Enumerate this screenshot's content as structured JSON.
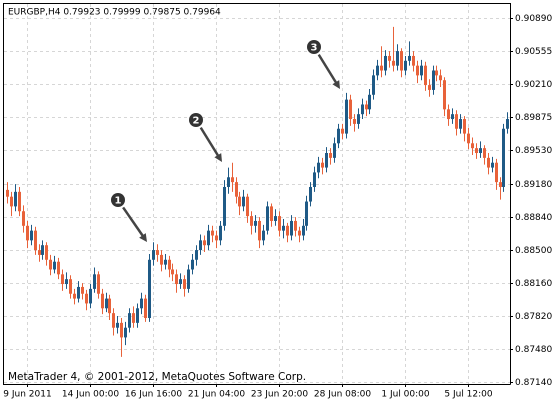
{
  "chart_data": {
    "type": "candlestick",
    "title": "EURGBP,H4  0.79923 0.79999 0.79875 0.79964",
    "footer": "MetaTrader 4, © 2001-2012, MetaQuotes Software Corp.",
    "annotations": [
      "1",
      "2",
      "3"
    ],
    "up_color": "#1f5a86",
    "down_color": "#e8623a",
    "grid": true,
    "ylim": [
      0.8712,
      0.91025
    ],
    "yticks": [
      {
        "value": 0.9089,
        "label": "0.90890"
      },
      {
        "value": 0.90555,
        "label": "0.90555"
      },
      {
        "value": 0.9021,
        "label": "0.90210"
      },
      {
        "value": 0.89875,
        "label": "0.89875"
      },
      {
        "value": 0.8953,
        "label": "0.89530"
      },
      {
        "value": 0.8918,
        "label": "0.89180"
      },
      {
        "value": 0.8884,
        "label": "0.88840"
      },
      {
        "value": 0.885,
        "label": "0.88500"
      },
      {
        "value": 0.8816,
        "label": "0.88160"
      },
      {
        "value": 0.8782,
        "label": "0.87820"
      },
      {
        "value": 0.8748,
        "label": "0.87480"
      },
      {
        "value": 0.8714,
        "label": "0.87140"
      }
    ],
    "categories": [
      null,
      null,
      null,
      null,
      null,
      "9 Jun 2011",
      null,
      null,
      null,
      null,
      null,
      null,
      null,
      null,
      null,
      null,
      null,
      null,
      null,
      null,
      null,
      "14 Jun 00:00",
      null,
      null,
      null,
      null,
      null,
      null,
      null,
      null,
      null,
      null,
      null,
      null,
      null,
      null,
      null,
      "16 Jun 16:00",
      null,
      null,
      null,
      null,
      null,
      null,
      null,
      null,
      null,
      null,
      null,
      null,
      null,
      null,
      null,
      "21 Jun 04:00",
      null,
      null,
      null,
      null,
      null,
      null,
      null,
      null,
      null,
      null,
      null,
      null,
      null,
      null,
      null,
      "23 Jun 20:00",
      null,
      null,
      null,
      null,
      null,
      null,
      null,
      null,
      null,
      null,
      null,
      null,
      null,
      null,
      null,
      "28 Jun 08:00",
      null,
      null,
      null,
      null,
      null,
      null,
      null,
      null,
      null,
      null,
      null,
      null,
      null,
      null,
      null,
      "1 Jul 00:00",
      null,
      null,
      null,
      null,
      null,
      null,
      null,
      null,
      null,
      null,
      null,
      null,
      null,
      null,
      null,
      "5 Jul 12:00",
      null,
      null,
      null,
      null,
      null,
      null,
      null,
      null,
      null,
      null
    ],
    "open": [
      0.8912,
      0.8905,
      0.8895,
      0.891,
      0.889,
      0.8875,
      0.886,
      0.887,
      0.885,
      0.8845,
      0.8855,
      0.884,
      0.883,
      0.8838,
      0.8825,
      0.8815,
      0.882,
      0.8805,
      0.88,
      0.8812,
      0.8805,
      0.8795,
      0.881,
      0.8825,
      0.8805,
      0.879,
      0.88,
      0.8785,
      0.877,
      0.8775,
      0.876,
      0.877,
      0.8785,
      0.8775,
      0.879,
      0.88,
      0.878,
      0.884,
      0.885,
      0.8845,
      0.8835,
      0.884,
      0.883,
      0.8825,
      0.8815,
      0.882,
      0.881,
      0.883,
      0.884,
      0.885,
      0.886,
      0.8855,
      0.887,
      0.8865,
      0.886,
      0.8875,
      0.8915,
      0.8925,
      0.892,
      0.8905,
      0.8895,
      0.8905,
      0.8885,
      0.8875,
      0.888,
      0.886,
      0.887,
      0.8895,
      0.888,
      0.8885,
      0.887,
      0.8875,
      0.8865,
      0.888,
      0.887,
      0.8865,
      0.8875,
      0.89,
      0.8915,
      0.893,
      0.894,
      0.8935,
      0.895,
      0.8945,
      0.896,
      0.8975,
      0.897,
      0.9005,
      0.8985,
      0.898,
      0.899,
      0.9,
      0.8995,
      0.901,
      0.903,
      0.904,
      0.9035,
      0.905,
      0.9045,
      0.904,
      0.9055,
      0.9035,
      0.9045,
      0.905,
      0.904,
      0.903,
      0.904,
      0.902,
      0.9015,
      0.9035,
      0.903,
      0.9025,
      0.8995,
      0.8985,
      0.899,
      0.8975,
      0.8985,
      0.897,
      0.896,
      0.8955,
      0.895,
      0.8955,
      0.8945,
      0.8935,
      0.894,
      0.892,
      0.8915,
      0.8975
    ],
    "high": [
      0.892,
      0.891,
      0.8918,
      0.8915,
      0.8896,
      0.888,
      0.8876,
      0.8874,
      0.8856,
      0.886,
      0.8858,
      0.8845,
      0.8844,
      0.8842,
      0.883,
      0.8827,
      0.8824,
      0.881,
      0.8818,
      0.8816,
      0.8809,
      0.8815,
      0.8832,
      0.8828,
      0.881,
      0.8806,
      0.8804,
      0.879,
      0.8782,
      0.878,
      0.8776,
      0.879,
      0.8792,
      0.8795,
      0.8806,
      0.8804,
      0.8846,
      0.8858,
      0.8856,
      0.885,
      0.8846,
      0.8844,
      0.8836,
      0.883,
      0.8826,
      0.8824,
      0.8835,
      0.8846,
      0.8855,
      0.8866,
      0.8865,
      0.8876,
      0.8875,
      0.887,
      0.888,
      0.8922,
      0.8935,
      0.894,
      0.8925,
      0.891,
      0.8912,
      0.8908,
      0.889,
      0.8886,
      0.8884,
      0.8876,
      0.89,
      0.8898,
      0.8892,
      0.889,
      0.8882,
      0.8878,
      0.8886,
      0.8884,
      0.8874,
      0.8882,
      0.8906,
      0.892,
      0.8936,
      0.8946,
      0.8945,
      0.8956,
      0.8955,
      0.8966,
      0.898,
      0.898,
      0.9012,
      0.901,
      0.899,
      0.8996,
      0.9006,
      0.9004,
      0.9016,
      0.9036,
      0.9046,
      0.906,
      0.9056,
      0.9055,
      0.908,
      0.9062,
      0.9058,
      0.905,
      0.9065,
      0.9055,
      0.9045,
      0.9046,
      0.9044,
      0.9026,
      0.904,
      0.904,
      0.9036,
      0.9028,
      0.9,
      0.8996,
      0.8994,
      0.899,
      0.8988,
      0.8976,
      0.8966,
      0.896,
      0.8962,
      0.8958,
      0.895,
      0.8946,
      0.8944,
      0.8925,
      0.898,
      0.8992
    ],
    "low": [
      0.8898,
      0.8885,
      0.889,
      0.8885,
      0.8868,
      0.8852,
      0.8855,
      0.8845,
      0.8838,
      0.884,
      0.8834,
      0.8824,
      0.8826,
      0.882,
      0.8808,
      0.881,
      0.88,
      0.8794,
      0.8796,
      0.8799,
      0.8788,
      0.879,
      0.8806,
      0.88,
      0.8784,
      0.8786,
      0.8778,
      0.8762,
      0.8764,
      0.874,
      0.8752,
      0.8765,
      0.877,
      0.877,
      0.8784,
      0.8776,
      0.8776,
      0.8834,
      0.8838,
      0.8828,
      0.883,
      0.8822,
      0.8818,
      0.8806,
      0.881,
      0.8802,
      0.8806,
      0.8825,
      0.8834,
      0.8845,
      0.8848,
      0.885,
      0.8858,
      0.8852,
      0.8855,
      0.887,
      0.8908,
      0.891,
      0.8898,
      0.8886,
      0.889,
      0.8878,
      0.8866,
      0.8868,
      0.8852,
      0.8855,
      0.8866,
      0.8874,
      0.8875,
      0.8864,
      0.8862,
      0.8858,
      0.886,
      0.8864,
      0.8858,
      0.886,
      0.887,
      0.8895,
      0.891,
      0.8924,
      0.8928,
      0.893,
      0.8938,
      0.894,
      0.8955,
      0.8964,
      0.8965,
      0.8978,
      0.8972,
      0.8975,
      0.8985,
      0.8988,
      0.899,
      0.9005,
      0.9025,
      0.9028,
      0.903,
      0.9038,
      0.9034,
      0.9035,
      0.9028,
      0.903,
      0.904,
      0.9034,
      0.9022,
      0.9025,
      0.9014,
      0.9008,
      0.901,
      0.9024,
      0.9018,
      0.8988,
      0.8978,
      0.898,
      0.8968,
      0.897,
      0.8962,
      0.8954,
      0.8948,
      0.8944,
      0.8945,
      0.8938,
      0.8928,
      0.893,
      0.8912,
      0.8902,
      0.891,
      0.897
    ],
    "close": [
      0.8905,
      0.8895,
      0.891,
      0.889,
      0.8875,
      0.886,
      0.887,
      0.885,
      0.8845,
      0.8855,
      0.884,
      0.883,
      0.8838,
      0.8825,
      0.8815,
      0.882,
      0.8805,
      0.88,
      0.8812,
      0.8805,
      0.8795,
      0.881,
      0.8825,
      0.8805,
      0.879,
      0.88,
      0.8785,
      0.877,
      0.8775,
      0.876,
      0.877,
      0.8785,
      0.8775,
      0.879,
      0.88,
      0.878,
      0.884,
      0.885,
      0.8845,
      0.8835,
      0.884,
      0.883,
      0.8825,
      0.8815,
      0.882,
      0.881,
      0.883,
      0.884,
      0.885,
      0.886,
      0.8855,
      0.887,
      0.8865,
      0.886,
      0.8875,
      0.8915,
      0.8925,
      0.892,
      0.8905,
      0.8895,
      0.8905,
      0.8885,
      0.8875,
      0.888,
      0.886,
      0.887,
      0.8895,
      0.888,
      0.8885,
      0.887,
      0.8875,
      0.8865,
      0.888,
      0.887,
      0.8865,
      0.8875,
      0.89,
      0.8915,
      0.893,
      0.894,
      0.8935,
      0.895,
      0.8945,
      0.896,
      0.8975,
      0.897,
      0.9005,
      0.8985,
      0.898,
      0.899,
      0.9,
      0.8995,
      0.901,
      0.903,
      0.904,
      0.9035,
      0.905,
      0.9045,
      0.904,
      0.9055,
      0.9035,
      0.9045,
      0.905,
      0.904,
      0.903,
      0.904,
      0.902,
      0.9015,
      0.9035,
      0.903,
      0.9025,
      0.8995,
      0.8985,
      0.899,
      0.8975,
      0.8985,
      0.897,
      0.896,
      0.8955,
      0.895,
      0.8955,
      0.8945,
      0.8935,
      0.894,
      0.892,
      0.8915,
      0.8975,
      0.8985
    ]
  }
}
